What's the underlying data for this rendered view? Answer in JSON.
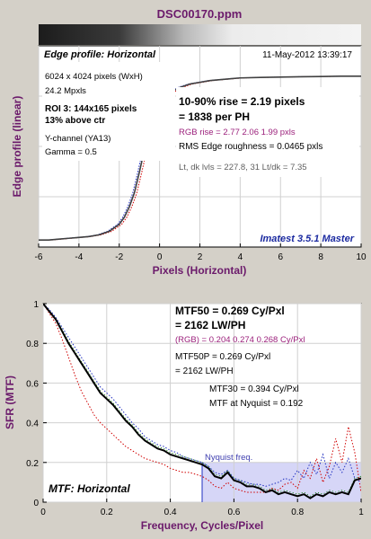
{
  "window_title": "DSC00170.ppm",
  "colors": {
    "title": "#6b1a6b",
    "axis_label": "#6b1a6b",
    "mtf_line": "#000000",
    "red": "#d00000",
    "green": "#108010",
    "blue": "#2030c0",
    "nyquist_fill": "#c8c8f4",
    "plot_bg": "#ffffff",
    "frame_bg": "#d4d0c8",
    "rgb_text": "#9b1f7b",
    "nyquist_label": "#4040b0",
    "imatest_label": "#1b2aa0"
  },
  "chart_data": [
    {
      "type": "line",
      "title": "Edge profile: Horizontal",
      "date": "11-May-2012 13:39:17",
      "xlabel": "Pixels (Horizontal)",
      "ylabel": "Edge profile (linear)",
      "xlim": [
        -6,
        10
      ],
      "xticks": [
        -6,
        -4,
        -2,
        0,
        2,
        4,
        6,
        8,
        10
      ],
      "grid": true,
      "info_lines": [
        "6024 x 4024 pixels (WxH)",
        "24.2 Mpxls"
      ],
      "roi_lines": [
        "ROI 3:  144x165 pixels",
        "13% above ctr"
      ],
      "channel_lines": [
        "Y-channel  (YA13)",
        "Gamma = 0.5"
      ],
      "rise_lines": [
        "10-90% rise = 2.19 pixels",
        "= 1838 per PH"
      ],
      "rgb_rise": "RGB rise = 2.77  2.06  1.99 pxls",
      "roughness": "RMS Edge roughness = 0.0465 pxls",
      "levels": "Lt, dk lvls = 227.8, 31   Lt/dk = 7.35",
      "watermark": "Imatest 3.5.1 Master",
      "x": [
        -6,
        -5.5,
        -5,
        -4.5,
        -4,
        -3.5,
        -3,
        -2.5,
        -2,
        -1.75,
        -1.5,
        -1.25,
        -1,
        -0.75,
        -0.5,
        -0.25,
        0,
        0.25,
        0.5,
        0.75,
        1,
        1.25,
        1.5,
        2,
        2.5,
        3,
        3.5,
        4,
        5,
        6,
        7,
        8,
        9,
        10
      ],
      "series": [
        {
          "y": [
            0.03,
            0.03,
            0.035,
            0.04,
            0.045,
            0.05,
            0.06,
            0.08,
            0.12,
            0.16,
            0.22,
            0.3,
            0.42,
            0.55,
            0.66,
            0.74,
            0.8,
            0.84,
            0.87,
            0.89,
            0.905,
            0.915,
            0.925,
            0.935,
            0.945,
            0.95,
            0.955,
            0.96,
            0.963,
            0.965,
            0.967,
            0.968,
            0.97,
            0.97
          ]
        }
      ]
    },
    {
      "type": "line",
      "title": "MTF: Horizontal",
      "xlabel": "Frequency, Cycles/Pixel",
      "ylabel": "SFR (MTF)",
      "xlim": [
        0,
        1
      ],
      "ylim": [
        0,
        1
      ],
      "xticks": [
        0,
        0.2,
        0.4,
        0.6,
        0.8,
        1
      ],
      "yticks": [
        0,
        0.2,
        0.4,
        0.6,
        0.8,
        1
      ],
      "grid": true,
      "nyquist": 0.5,
      "nyquist_label": "Nyquist freq.",
      "mtf50_lines": [
        "MTF50 = 0.269 Cy/Pxl",
        "= 2162 LW/PH"
      ],
      "rgb_mtf50": "(RGB) = 0.204  0.274  0.268 Cy/Pxl",
      "mtf50p_lines": [
        "MTF50P = 0.269 Cy/Pxl",
        "= 2162 LW/PH"
      ],
      "mtf30_lines": [
        "MTF30 = 0.394 Cy/Pxl",
        "MTF at Nyquist = 0.192"
      ],
      "x": [
        0,
        0.02,
        0.04,
        0.06,
        0.08,
        0.1,
        0.12,
        0.14,
        0.16,
        0.18,
        0.2,
        0.22,
        0.24,
        0.26,
        0.28,
        0.3,
        0.32,
        0.34,
        0.36,
        0.38,
        0.4,
        0.42,
        0.44,
        0.46,
        0.48,
        0.5,
        0.52,
        0.54,
        0.56,
        0.58,
        0.6,
        0.62,
        0.64,
        0.66,
        0.68,
        0.7,
        0.72,
        0.74,
        0.76,
        0.78,
        0.8,
        0.82,
        0.84,
        0.86,
        0.88,
        0.9,
        0.92,
        0.94,
        0.96,
        0.98,
        1
      ],
      "series": [
        {
          "name": "Y",
          "y": [
            1,
            0.96,
            0.92,
            0.86,
            0.8,
            0.75,
            0.7,
            0.65,
            0.6,
            0.55,
            0.52,
            0.49,
            0.45,
            0.41,
            0.38,
            0.34,
            0.31,
            0.29,
            0.27,
            0.26,
            0.24,
            0.23,
            0.22,
            0.21,
            0.2,
            0.19,
            0.17,
            0.13,
            0.12,
            0.15,
            0.11,
            0.1,
            0.08,
            0.08,
            0.07,
            0.05,
            0.06,
            0.04,
            0.05,
            0.04,
            0.03,
            0.04,
            0.02,
            0.04,
            0.03,
            0.05,
            0.04,
            0.05,
            0.04,
            0.11,
            0.12
          ]
        },
        {
          "name": "R",
          "y": [
            1,
            0.95,
            0.9,
            0.82,
            0.73,
            0.64,
            0.56,
            0.5,
            0.44,
            0.4,
            0.37,
            0.34,
            0.31,
            0.28,
            0.26,
            0.24,
            0.22,
            0.21,
            0.2,
            0.19,
            0.17,
            0.16,
            0.15,
            0.15,
            0.14,
            0.13,
            0.11,
            0.08,
            0.07,
            0.1,
            0.07,
            0.06,
            0.05,
            0.05,
            0.05,
            0.05,
            0.07,
            0.06,
            0.09,
            0.1,
            0.07,
            0.16,
            0.12,
            0.22,
            0.1,
            0.18,
            0.32,
            0.2,
            0.38,
            0.25,
            0.05
          ]
        },
        {
          "name": "G",
          "y": [
            1,
            0.965,
            0.93,
            0.87,
            0.81,
            0.76,
            0.71,
            0.66,
            0.61,
            0.56,
            0.53,
            0.5,
            0.46,
            0.42,
            0.39,
            0.35,
            0.32,
            0.3,
            0.28,
            0.27,
            0.25,
            0.24,
            0.23,
            0.22,
            0.21,
            0.2,
            0.18,
            0.14,
            0.13,
            0.16,
            0.12,
            0.11,
            0.09,
            0.09,
            0.08,
            0.06,
            0.07,
            0.05,
            0.06,
            0.05,
            0.04,
            0.05,
            0.03,
            0.05,
            0.04,
            0.06,
            0.05,
            0.06,
            0.05,
            0.12,
            0.13
          ]
        },
        {
          "name": "B",
          "y": [
            1,
            0.97,
            0.93,
            0.88,
            0.83,
            0.78,
            0.73,
            0.68,
            0.63,
            0.58,
            0.55,
            0.52,
            0.48,
            0.44,
            0.4,
            0.37,
            0.33,
            0.31,
            0.29,
            0.28,
            0.26,
            0.25,
            0.23,
            0.22,
            0.21,
            0.2,
            0.18,
            0.15,
            0.14,
            0.16,
            0.12,
            0.11,
            0.1,
            0.09,
            0.09,
            0.08,
            0.09,
            0.1,
            0.12,
            0.11,
            0.16,
            0.12,
            0.2,
            0.14,
            0.24,
            0.12,
            0.2,
            0.15,
            0.22,
            0.12,
            0.1
          ]
        }
      ]
    }
  ]
}
